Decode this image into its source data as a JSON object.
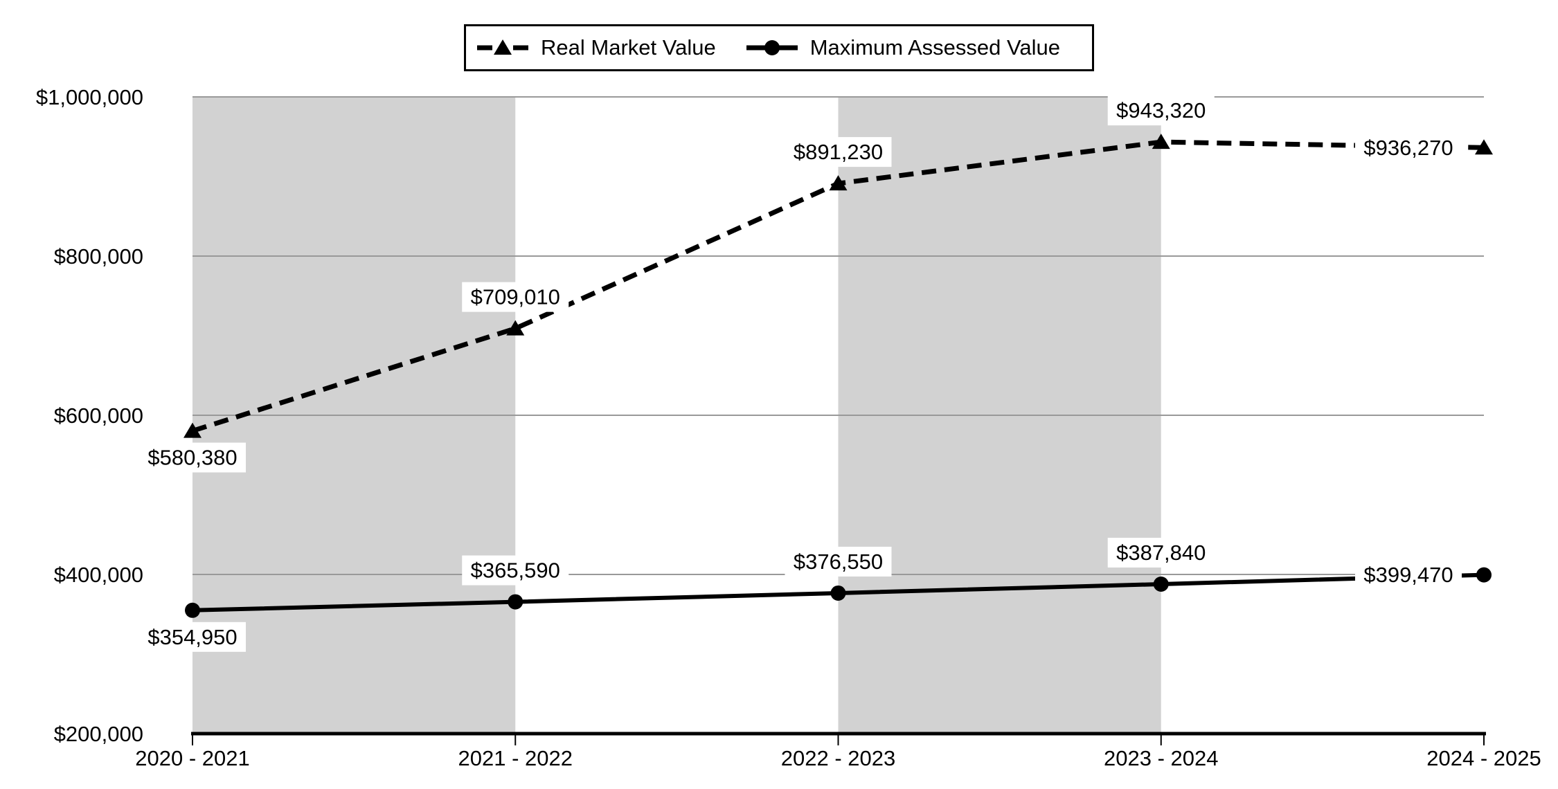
{
  "chart_data": {
    "type": "line",
    "title": "",
    "xlabel": "",
    "ylabel": "",
    "categories": [
      "2020 - 2021",
      "2021 - 2022",
      "2022 - 2023",
      "2023 - 2024",
      "2024 - 2025"
    ],
    "series": [
      {
        "name": "Real Market Value",
        "values": [
          580380,
          709010,
          891230,
          943320,
          936270
        ],
        "labels": [
          "$580,380",
          "$709,010",
          "$891,230",
          "$943,320",
          "$936,270"
        ],
        "label_placement": [
          "below",
          "above",
          "above",
          "above",
          "left"
        ],
        "line_style": "dashed",
        "marker": "triangle"
      },
      {
        "name": "Maximum Assessed Value",
        "values": [
          354950,
          365590,
          376550,
          387840,
          399470
        ],
        "labels": [
          "$354,950",
          "$365,590",
          "$376,550",
          "$387,840",
          "$399,470"
        ],
        "label_placement": [
          "below",
          "above",
          "above",
          "above",
          "left"
        ],
        "line_style": "solid",
        "marker": "circle"
      }
    ],
    "y_axis": {
      "min": 200000,
      "max": 1000000,
      "step": 200000,
      "tick_labels": [
        "$200,000",
        "$400,000",
        "$600,000",
        "$800,000",
        "$1,000,000"
      ]
    },
    "legend": {
      "position": "top-center",
      "entries": [
        "Real Market Value",
        "Maximum Assessed Value"
      ]
    },
    "plot": {
      "grid": true,
      "band_fill_columns": [
        0,
        2
      ],
      "band_color": "#d2d2d2",
      "gridline_color": "#999999",
      "axis_color": "#000000",
      "line_color": "#000000",
      "label_bg": "#ffffff",
      "text_color": "#000000",
      "background": "#ffffff"
    }
  }
}
